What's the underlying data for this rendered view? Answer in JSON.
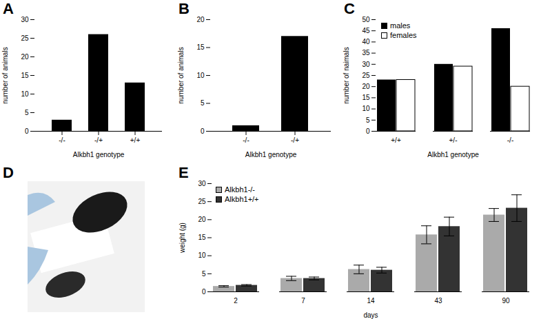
{
  "chart_data": [
    {
      "type": "bar",
      "title": "A",
      "categories": [
        "-/-",
        "-/+",
        "+/+"
      ],
      "values": [
        3,
        26,
        13
      ],
      "color": "#000000",
      "xlabel": "Alkbh1 genotype",
      "ylabel": "number of animals",
      "ylim": [
        0,
        30
      ],
      "yticks": [
        0,
        5,
        10,
        15,
        20,
        25,
        30
      ]
    },
    {
      "type": "bar",
      "title": "B",
      "categories": [
        "-/-",
        "-/+"
      ],
      "values": [
        1,
        17
      ],
      "color": "#000000",
      "xlabel": "Alkbh1 genotype",
      "ylabel": "number of animals",
      "ylim": [
        0,
        20
      ],
      "yticks": [
        0,
        5,
        10,
        15,
        20
      ]
    },
    {
      "type": "bar",
      "title": "C",
      "categories": [
        "+/+",
        "+/-",
        "-/-"
      ],
      "series": [
        {
          "name": "males",
          "color": "#000000",
          "values": [
            23,
            30,
            46
          ]
        },
        {
          "name": "females",
          "color": "#ffffff",
          "values": [
            23,
            29,
            20
          ]
        }
      ],
      "xlabel": "Alkbh1 genotype",
      "ylabel": "number of naimals",
      "ylim": [
        0,
        50
      ],
      "yticks": [
        0,
        5,
        10,
        15,
        20,
        25,
        30,
        35,
        40,
        45,
        50
      ],
      "legend": "top-left"
    },
    {
      "type": "image",
      "title": "D"
    },
    {
      "type": "bar",
      "title": "E",
      "categories": [
        2,
        7,
        14,
        43,
        90
      ],
      "series": [
        {
          "name": "Alkbh1-/-",
          "color": "#aaaaaa",
          "values": [
            1.5,
            3.7,
            6.2,
            15.8,
            21.3
          ],
          "errors": [
            0.2,
            0.6,
            1.2,
            2.5,
            1.8
          ]
        },
        {
          "name": "Alkbh1+/+",
          "color": "#333333",
          "values": [
            1.8,
            3.7,
            6.0,
            18.1,
            23.2
          ],
          "errors": [
            0.2,
            0.4,
            0.8,
            2.6,
            3.7
          ]
        }
      ],
      "xlabel": "days",
      "ylabel": "weight (g)",
      "ylim": [
        0,
        30
      ],
      "yticks": [
        0,
        5,
        10,
        15,
        20,
        25,
        30
      ],
      "legend": "top-left"
    }
  ]
}
